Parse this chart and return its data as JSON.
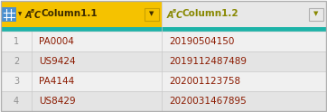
{
  "col1_header": "Column1.1",
  "col2_header": "Column1.2",
  "rows": [
    [
      "1",
      "PA0004",
      "20190504150"
    ],
    [
      "2",
      "US9424",
      "2019112487489"
    ],
    [
      "3",
      "PA4144",
      "202001123758"
    ],
    [
      "4",
      "US8429",
      "2020031467895"
    ]
  ],
  "header_bg_col1": "#F5C200",
  "header_bg_col2": "#E8E8E8",
  "header_text_col1": "#3D2B00",
  "header_text_col2": "#888800",
  "teal_bar_color": "#1DB3A8",
  "row_bg_light": "#F0F0F0",
  "row_bg_dark": "#E4E4E4",
  "border_color": "#C8C8C8",
  "row_num_color": "#909090",
  "cell_text_color": "#8B1A00",
  "outer_border_color": "#B0B0B0",
  "fig_bg": "#FFFFFF",
  "icon_box_bg_col1": "#4A90D0",
  "icon_box_bg_col2": "#E8E8E8",
  "dropdown_box_col1": "#C8A000",
  "dropdown_box_col2": "#B0B0B0",
  "header_fontsize": 7.5,
  "cell_fontsize": 7.5,
  "rownum_fontsize": 7
}
